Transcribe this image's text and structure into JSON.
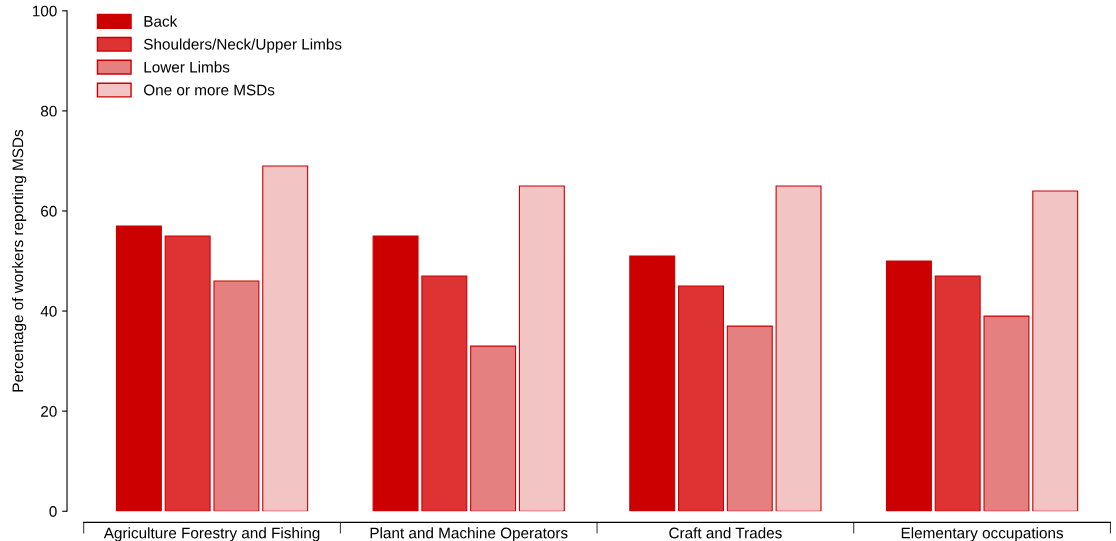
{
  "chart_data": {
    "type": "bar",
    "ylabel": "Percentage of workers reporting MSDs",
    "categories": [
      "Agriculture Forestry and Fishing",
      "Plant and Machine Operators",
      "Craft and Trades",
      "Elementary occupations"
    ],
    "series": [
      {
        "name": "Back",
        "color": "#cc0000",
        "values": [
          57,
          55,
          51,
          50
        ]
      },
      {
        "name": "Shoulders/Neck/Upper Limbs",
        "color": "#dd3333",
        "values": [
          55,
          47,
          45,
          47
        ]
      },
      {
        "name": "Lower Limbs",
        "color": "#e58080",
        "values": [
          46,
          33,
          37,
          39
        ]
      },
      {
        "name": "One or more MSDs",
        "color": "#f2c4c4",
        "values": [
          69,
          65,
          65,
          64
        ]
      }
    ],
    "ylim": [
      0,
      100
    ],
    "yticks": [
      0,
      20,
      40,
      60,
      80,
      100
    ],
    "grid": false,
    "legend": "top left"
  }
}
